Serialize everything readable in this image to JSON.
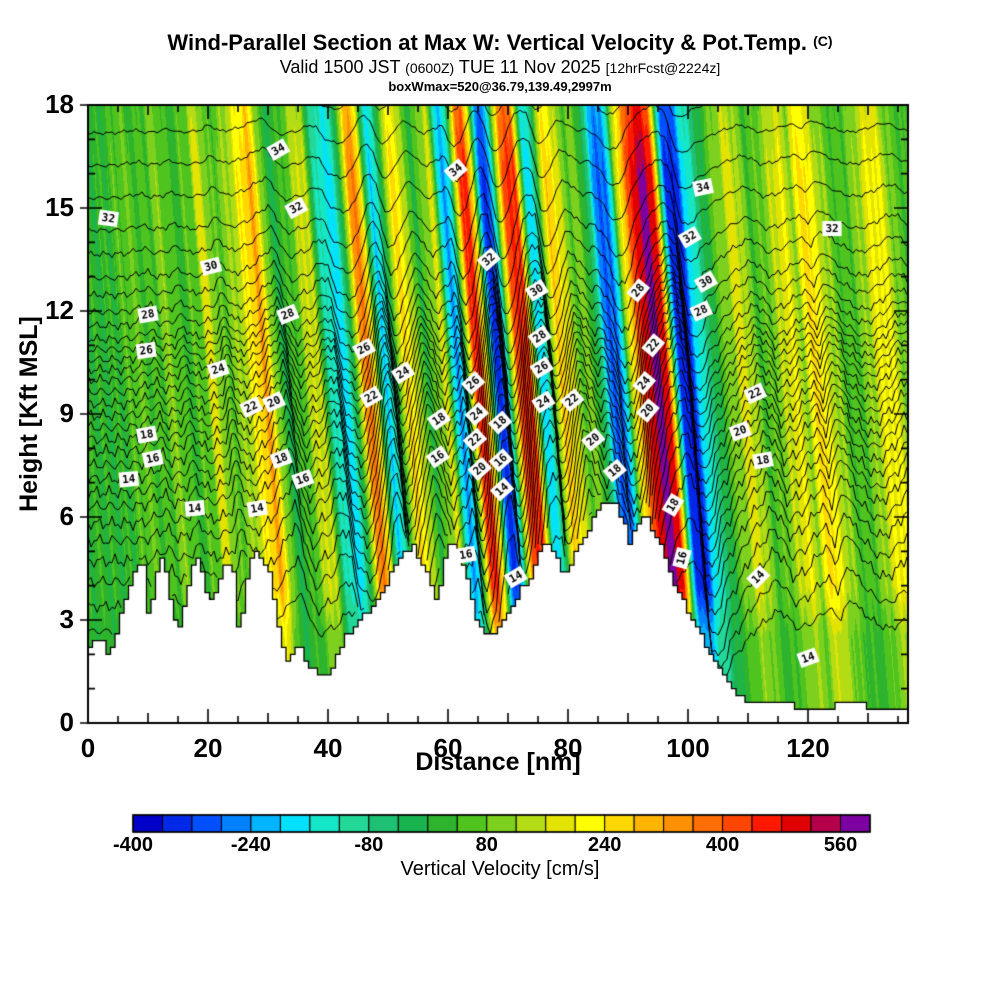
{
  "header": {
    "title": "Wind-Parallel Section at Max W: Vertical Velocity & Pot.Temp.",
    "title_suffix": "(C)",
    "valid": {
      "p1": "Valid 1500 JST",
      "s1": "(0600Z)",
      "p2": "TUE 11 Nov 2025",
      "s2": "[12hrFcst@2224z]"
    },
    "info_line": "boxWmax=520@36.79,139.49,2997m"
  },
  "axes": {
    "x_label": "Distance [nm]",
    "y_label": "Height [Kft MSL]"
  },
  "chart_data": {
    "type": "heatmap",
    "subtype": "vertical-cross-section: filled vertical-velocity contours + potential-temperature isolines + terrain mask",
    "title": "Wind-Parallel Section at Max W: Vertical Velocity & Pot.Temp. (C)",
    "subtitle": "Valid 1500 JST (0600Z) TUE 11 Nov 2025 [12hrFcst@2224z]",
    "annotation": "boxWmax=520@36.79,139.49,2997m",
    "xlabel": "Distance [nm]",
    "ylabel": "Height [Kft MSL]",
    "xlim": [
      0,
      136.7
    ],
    "ylim": [
      0,
      18
    ],
    "xticks_major": [
      0,
      20,
      40,
      60,
      80,
      100,
      120
    ],
    "xtick_minor_step": 5,
    "yticks_major": [
      0,
      3,
      6,
      9,
      12,
      15,
      18
    ],
    "ytick_minor_step": 1,
    "grid": false,
    "colorbar": {
      "label": "Vertical Velocity [cm/s]",
      "tick_values": [
        -400,
        -240,
        -80,
        80,
        240,
        400,
        560
      ],
      "level_min": -400,
      "level_step": 40,
      "level_max": 600,
      "colors": [
        "#0000c8",
        "#0028e6",
        "#0050ff",
        "#0082ff",
        "#00b4ff",
        "#00e1ff",
        "#14e6c8",
        "#23d796",
        "#1ec173",
        "#19b450",
        "#2db32d",
        "#4fc31e",
        "#7ed01e",
        "#b3dc14",
        "#e3e300",
        "#ffff00",
        "#ffd800",
        "#ffb400",
        "#ff9100",
        "#ff6e00",
        "#ff4600",
        "#ff1900",
        "#e00000",
        "#b4004b",
        "#7d00a0"
      ]
    },
    "isentropes": {
      "unit": "C",
      "interval": 1,
      "level_min": 6,
      "level_max": 36,
      "labeled_levels": [
        14,
        16,
        18,
        20,
        22,
        24,
        26,
        28,
        30,
        32,
        34
      ],
      "theta_height_profile": [
        [
          6,
          2.6
        ],
        [
          8,
          4.0
        ],
        [
          10,
          5.2
        ],
        [
          12,
          6.2
        ],
        [
          14,
          7.0
        ],
        [
          16,
          7.8
        ],
        [
          18,
          8.5
        ],
        [
          20,
          9.2
        ],
        [
          22,
          9.9
        ],
        [
          24,
          10.5
        ],
        [
          26,
          11.1
        ],
        [
          28,
          11.9
        ],
        [
          30,
          12.9
        ],
        [
          32,
          14.3
        ],
        [
          34,
          16.2
        ],
        [
          36,
          18.1
        ]
      ]
    },
    "vertical_velocity_profile": {
      "x_start_nm": 0,
      "x_step_nm": 1,
      "w_cms": [
        20,
        25,
        30,
        50,
        70,
        80,
        50,
        30,
        45,
        60,
        100,
        90,
        40,
        40,
        50,
        60,
        90,
        180,
        140,
        60,
        70,
        90,
        120,
        160,
        220,
        280,
        310,
        210,
        80,
        -20,
        20,
        40,
        60,
        120,
        180,
        160,
        -20,
        -120,
        -160,
        -170,
        -140,
        40,
        260,
        380,
        300,
        -40,
        -180,
        -150,
        60,
        200,
        260,
        180,
        60,
        20,
        60,
        120,
        200,
        -80,
        -240,
        -200,
        160,
        420,
        470,
        200,
        -220,
        -340,
        -260,
        120,
        360,
        480,
        440,
        100,
        -200,
        -160,
        80,
        240,
        280,
        160,
        120,
        60,
        100,
        40,
        -60,
        -200,
        -320,
        -280,
        -120,
        160,
        320,
        420,
        520,
        560,
        540,
        480,
        60,
        -300,
        -380,
        -320,
        -200,
        -140,
        -80,
        -20,
        40,
        80,
        120,
        160,
        180,
        140,
        80,
        40,
        60,
        80,
        120,
        160,
        200,
        160,
        120,
        220,
        280,
        200,
        160,
        120,
        80,
        60,
        40,
        60,
        80,
        120,
        160,
        200,
        220,
        180,
        120,
        80,
        60,
        40,
        30,
        30
      ]
    },
    "terrain_profile": {
      "x_start_nm": 0,
      "x_step_nm": 1,
      "h_kft": [
        2.2,
        2.4,
        2.5,
        2.0,
        2.3,
        3.0,
        3.6,
        4.2,
        4.5,
        4.6,
        2.6,
        4.4,
        4.7,
        4.2,
        3.0,
        2.8,
        3.6,
        4.4,
        4.8,
        4.2,
        3.4,
        3.8,
        4.4,
        4.8,
        4.4,
        2.4,
        4.0,
        4.7,
        5.0,
        4.6,
        4.4,
        3.2,
        2.4,
        1.8,
        2.0,
        2.2,
        1.8,
        1.6,
        1.4,
        1.3,
        1.3,
        1.8,
        2.2,
        2.6,
        2.6,
        3.0,
        3.3,
        3.2,
        3.6,
        3.8,
        4.2,
        4.6,
        4.9,
        5.0,
        5.2,
        4.8,
        4.5,
        3.9,
        3.5,
        4.6,
        5.2,
        5.3,
        4.8,
        4.2,
        3.3,
        2.9,
        2.6,
        2.5,
        2.6,
        3.0,
        3.3,
        3.6,
        3.9,
        4.1,
        4.5,
        4.9,
        5.2,
        5.1,
        4.7,
        4.3,
        4.6,
        5.0,
        5.3,
        5.6,
        5.9,
        6.2,
        6.4,
        6.4,
        6.3,
        5.9,
        5.3,
        5.7,
        6.0,
        5.9,
        5.6,
        5.3,
        4.8,
        4.3,
        3.9,
        3.5,
        3.2,
        2.8,
        2.5,
        2.2,
        1.9,
        1.6,
        1.3,
        1.0,
        0.85,
        0.75,
        0.65,
        0.6,
        0.6,
        0.55,
        0.55,
        0.5,
        0.5,
        0.5,
        0.45,
        0.4,
        0.4,
        0.38,
        0.4,
        0.45,
        0.5,
        0.55,
        0.6,
        0.6,
        0.55,
        0.5,
        0.45,
        0.4,
        0.38,
        0.36,
        0.35,
        0.34,
        0.33,
        0.32
      ]
    },
    "contour_labels": [
      [
        32,
        3.4,
        14.7,
        -8
      ],
      [
        28,
        10,
        11.9,
        10
      ],
      [
        26,
        9.7,
        10.85,
        8
      ],
      [
        18,
        9.8,
        8.4,
        10
      ],
      [
        16,
        10.8,
        7.7,
        12
      ],
      [
        14,
        6.8,
        7.1,
        5
      ],
      [
        30,
        20.5,
        13.3,
        15
      ],
      [
        24,
        21.7,
        10.3,
        18
      ],
      [
        22,
        27.2,
        9.2,
        25
      ],
      [
        20,
        31,
        9.35,
        25
      ],
      [
        18,
        32.2,
        7.7,
        20
      ],
      [
        16,
        35.8,
        7.1,
        20
      ],
      [
        14,
        28.2,
        6.25,
        10
      ],
      [
        14,
        17.8,
        6.25,
        5
      ],
      [
        34,
        31.7,
        16.7,
        30
      ],
      [
        32,
        34.7,
        15,
        28
      ],
      [
        28,
        33.3,
        11.9,
        22
      ],
      [
        26,
        46,
        10.9,
        28
      ],
      [
        24,
        52.5,
        10.2,
        32
      ],
      [
        22,
        47.2,
        9.5,
        30
      ],
      [
        34,
        61.3,
        16.1,
        40
      ],
      [
        32,
        66.8,
        13.5,
        42
      ],
      [
        30,
        74.8,
        12.6,
        32
      ],
      [
        28,
        75.3,
        11.25,
        35
      ],
      [
        26,
        75.6,
        10.35,
        32
      ],
      [
        24,
        75.9,
        9.35,
        32
      ],
      [
        22,
        80.7,
        9.4,
        40
      ],
      [
        20,
        84.2,
        8.25,
        40
      ],
      [
        18,
        87.8,
        7.35,
        40
      ],
      [
        18,
        58.5,
        8.85,
        35
      ],
      [
        16,
        58.3,
        7.75,
        35
      ],
      [
        26,
        64.2,
        9.9,
        42
      ],
      [
        24,
        64.8,
        9.0,
        42
      ],
      [
        22,
        64.5,
        8.25,
        42
      ],
      [
        20,
        65.3,
        7.4,
        42
      ],
      [
        18,
        68.7,
        8.75,
        42
      ],
      [
        16,
        68.8,
        7.65,
        42
      ],
      [
        14,
        69,
        6.8,
        42
      ],
      [
        16,
        63,
        4.9,
        10
      ],
      [
        14,
        71.3,
        4.25,
        30
      ],
      [
        28,
        91.7,
        12.6,
        50
      ],
      [
        22,
        94.2,
        11,
        50
      ],
      [
        24,
        92.7,
        9.9,
        50
      ],
      [
        20,
        93.3,
        9.1,
        50
      ],
      [
        18,
        97.5,
        6.35,
        60
      ],
      [
        16,
        99,
        4.8,
        75
      ],
      [
        34,
        102.5,
        15.6,
        12
      ],
      [
        32,
        100.3,
        14.15,
        30
      ],
      [
        30,
        103,
        12.85,
        30
      ],
      [
        28,
        102.2,
        12,
        25
      ],
      [
        22,
        111.2,
        9.6,
        25
      ],
      [
        20,
        108.7,
        8.5,
        20
      ],
      [
        18,
        112.5,
        7.65,
        10
      ],
      [
        14,
        111.7,
        4.25,
        45
      ],
      [
        14,
        120,
        1.9,
        20
      ],
      [
        32,
        124,
        14.4,
        0
      ]
    ],
    "render_params": {
      "tilt_nm_per_kft": 0.45,
      "phase_shift_nm": 2.5,
      "disp_scale_kft_per_cms": 0.0038,
      "disp_amp_by_h": [
        [
          0,
          1.5
        ],
        [
          8,
          1.5
        ],
        [
          12,
          0.9
        ],
        [
          15,
          0.55
        ],
        [
          18,
          0.38
        ]
      ],
      "w_amp_by_h": [
        [
          0,
          0.62
        ],
        [
          2.5,
          0.62
        ],
        [
          4,
          1
        ],
        [
          16,
          1
        ],
        [
          18,
          0.85
        ]
      ],
      "terrain_step_kft": 0.2,
      "terrain_step_nm": 0.75
    }
  }
}
